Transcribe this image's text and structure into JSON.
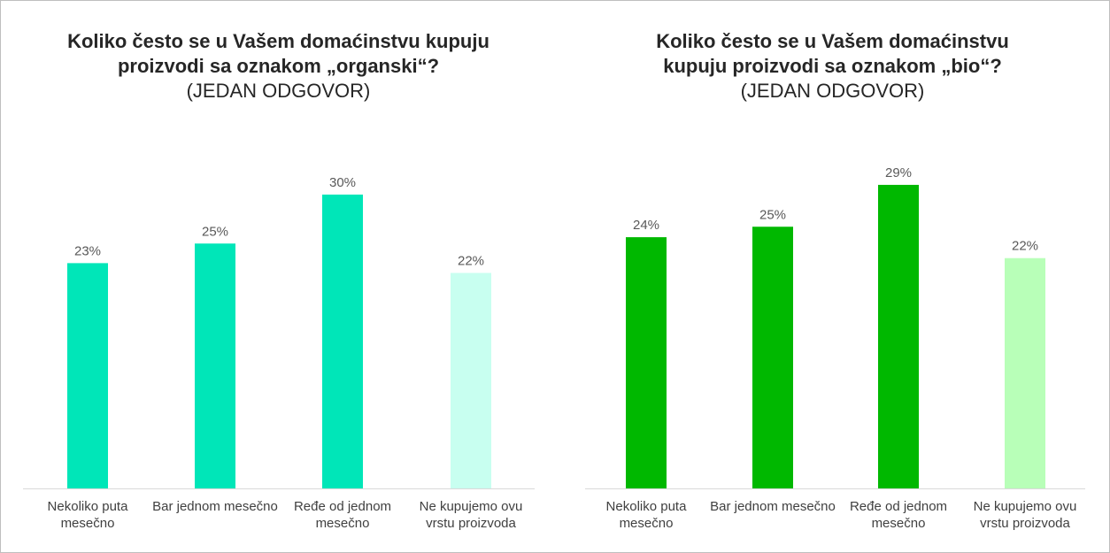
{
  "chart_data": [
    {
      "type": "bar",
      "title": "Koliko često se u Vašem domaćinstvu kupuju proizvodi sa oznakom „organski“?",
      "subtitle": "(JEDAN ODGOVOR)",
      "categories": [
        "Nekoliko puta mesečno",
        "Bar jednom mesečno",
        "Ređe od jednom mesečno",
        "Ne kupujemo ovu vrstu proizvoda"
      ],
      "values": [
        23,
        25,
        30,
        22
      ],
      "data_labels": [
        "23%",
        "25%",
        "30%",
        "22%"
      ],
      "unit": "%",
      "bar_colors": [
        "#00e6b8",
        "#00e6b8",
        "#00e6b8",
        "#c8fff0"
      ],
      "ylim": [
        0,
        30
      ],
      "grid": false,
      "legend": "none"
    },
    {
      "type": "bar",
      "title": "Koliko često se u Vašem domaćinstvu kupuju proizvodi sa oznakom „bio“?",
      "subtitle": "(JEDAN ODGOVOR)",
      "categories": [
        "Nekoliko puta mesečno",
        "Bar jednom mesečno",
        "Ređe od jednom mesečno",
        "Ne kupujemo ovu vrstu proizvoda"
      ],
      "values": [
        24,
        25,
        29,
        22
      ],
      "data_labels": [
        "24%",
        "25%",
        "29%",
        "22%"
      ],
      "unit": "%",
      "bar_colors": [
        "#00b800",
        "#00b800",
        "#00b800",
        "#b8ffb8"
      ],
      "ylim": [
        0,
        29
      ],
      "grid": false,
      "legend": "none"
    }
  ]
}
